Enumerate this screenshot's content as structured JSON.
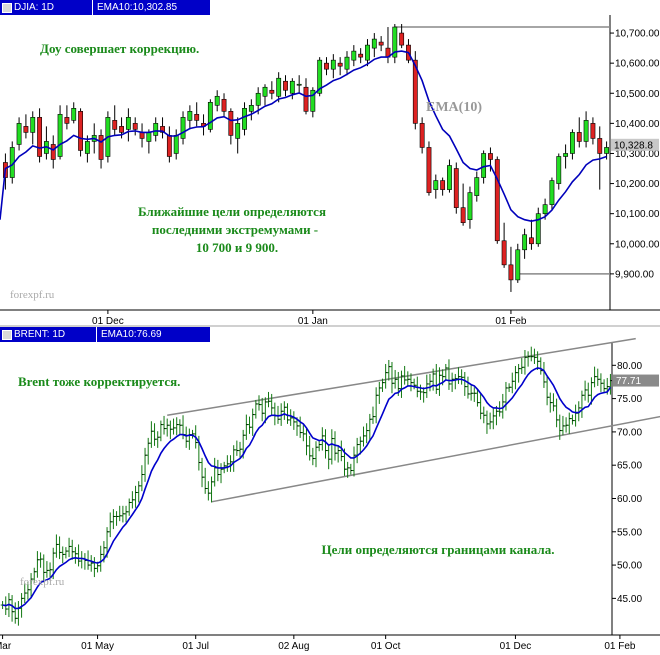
{
  "chart_data": [
    {
      "type": "candlestick",
      "symbol_label": "DJIA: 1D",
      "ema_label": "EMA10:10,302.85",
      "ylim": [
        9780,
        10760
      ],
      "y_ticks": [
        "10,700.00",
        "10,600.00",
        "10,500.00",
        "10,400.00",
        "10,300.00",
        "10,200.00",
        "10,100.00",
        "10,000.00",
        "9,900.00"
      ],
      "y_tick_values": [
        10700,
        10600,
        10500,
        10400,
        10300,
        10200,
        10100,
        10000,
        9900
      ],
      "last_value_label": "10,328.8",
      "last_value": 10328.8,
      "x_ticks": [
        "01 Dec",
        "01 Jan",
        "01 Feb"
      ],
      "x_tick_index": [
        15,
        45,
        74
      ],
      "annotations": {
        "headline": "Доу совершает коррекцию.",
        "ema_name": "EMA(10)",
        "targets_line1": "Ближайшие цели определяются",
        "targets_line2": "последними экстремумами -",
        "targets_line3": "10 700 и 9 900.",
        "watermark": "forexpf.ru"
      },
      "levels": [
        10720,
        9900
      ],
      "ohlc": [
        [
          10270,
          10300,
          10180,
          10220
        ],
        [
          10220,
          10340,
          10200,
          10320
        ],
        [
          10330,
          10420,
          10310,
          10400
        ],
        [
          10390,
          10430,
          10350,
          10370
        ],
        [
          10370,
          10440,
          10330,
          10420
        ],
        [
          10420,
          10450,
          10270,
          10290
        ],
        [
          10300,
          10390,
          10280,
          10340
        ],
        [
          10330,
          10360,
          10250,
          10280
        ],
        [
          10290,
          10460,
          10280,
          10430
        ],
        [
          10420,
          10460,
          10380,
          10400
        ],
        [
          10410,
          10470,
          10400,
          10450
        ],
        [
          10440,
          10450,
          10290,
          10310
        ],
        [
          10300,
          10360,
          10270,
          10340
        ],
        [
          10340,
          10400,
          10300,
          10360
        ],
        [
          10360,
          10380,
          10250,
          10280
        ],
        [
          10290,
          10440,
          10270,
          10420
        ],
        [
          10410,
          10460,
          10360,
          10380
        ],
        [
          10390,
          10420,
          10350,
          10370
        ],
        [
          10380,
          10450,
          10340,
          10420
        ],
        [
          10400,
          10420,
          10360,
          10380
        ],
        [
          10370,
          10400,
          10320,
          10350
        ],
        [
          10340,
          10380,
          10300,
          10370
        ],
        [
          10360,
          10420,
          10340,
          10400
        ],
        [
          10390,
          10420,
          10350,
          10370
        ],
        [
          10360,
          10390,
          10270,
          10290
        ],
        [
          10300,
          10380,
          10280,
          10360
        ],
        [
          10350,
          10440,
          10330,
          10420
        ],
        [
          10410,
          10460,
          10380,
          10440
        ],
        [
          10430,
          10470,
          10390,
          10410
        ],
        [
          10400,
          10430,
          10360,
          10390
        ],
        [
          10380,
          10480,
          10370,
          10470
        ],
        [
          10460,
          10510,
          10440,
          10490
        ],
        [
          10480,
          10500,
          10420,
          10440
        ],
        [
          10440,
          10450,
          10330,
          10360
        ],
        [
          10350,
          10420,
          10300,
          10400
        ],
        [
          10380,
          10470,
          10360,
          10450
        ],
        [
          10440,
          10480,
          10410,
          10460
        ],
        [
          10460,
          10520,
          10430,
          10500
        ],
        [
          10490,
          10530,
          10460,
          10520
        ],
        [
          10510,
          10540,
          10480,
          10500
        ],
        [
          10490,
          10570,
          10470,
          10550
        ],
        [
          10540,
          10560,
          10490,
          10510
        ],
        [
          10500,
          10550,
          10480,
          10540
        ],
        [
          10530,
          10560,
          10500,
          10530
        ],
        [
          10520,
          10550,
          10430,
          10440
        ],
        [
          10440,
          10520,
          10420,
          10510
        ],
        [
          10500,
          10620,
          10490,
          10610
        ],
        [
          10600,
          10620,
          10560,
          10580
        ],
        [
          10580,
          10630,
          10550,
          10610
        ],
        [
          10600,
          10620,
          10560,
          10590
        ],
        [
          10580,
          10640,
          10560,
          10620
        ],
        [
          10610,
          10660,
          10590,
          10640
        ],
        [
          10630,
          10650,
          10600,
          10620
        ],
        [
          10610,
          10680,
          10590,
          10660
        ],
        [
          10650,
          10700,
          10620,
          10680
        ],
        [
          10670,
          10690,
          10640,
          10660
        ],
        [
          10650,
          10720,
          10600,
          10620
        ],
        [
          10620,
          10730,
          10600,
          10720
        ],
        [
          10700,
          10730,
          10650,
          10660
        ],
        [
          10660,
          10680,
          10600,
          10610
        ],
        [
          10610,
          10640,
          10380,
          10400
        ],
        [
          10400,
          10420,
          10300,
          10320
        ],
        [
          10320,
          10340,
          10160,
          10170
        ],
        [
          10180,
          10230,
          10150,
          10210
        ],
        [
          10210,
          10220,
          10160,
          10180
        ],
        [
          10180,
          10280,
          10170,
          10260
        ],
        [
          10250,
          10270,
          10100,
          10120
        ],
        [
          10120,
          10200,
          10060,
          10070
        ],
        [
          10080,
          10190,
          10050,
          10170
        ],
        [
          10160,
          10240,
          10140,
          10220
        ],
        [
          10220,
          10310,
          10200,
          10300
        ],
        [
          10300,
          10320,
          10240,
          10280
        ],
        [
          10280,
          10290,
          10000,
          10010
        ],
        [
          10010,
          10070,
          9920,
          9930
        ],
        [
          9930,
          9990,
          9840,
          9880
        ],
        [
          9880,
          10000,
          9870,
          9980
        ],
        [
          9980,
          10050,
          9950,
          10030
        ],
        [
          10020,
          10080,
          9980,
          10000
        ],
        [
          10000,
          10120,
          9990,
          10100
        ],
        [
          10100,
          10150,
          10080,
          10130
        ],
        [
          10130,
          10220,
          10110,
          10210
        ],
        [
          10200,
          10300,
          10180,
          10290
        ],
        [
          10290,
          10330,
          10250,
          10300
        ],
        [
          10300,
          10380,
          10280,
          10370
        ],
        [
          10370,
          10420,
          10320,
          10340
        ],
        [
          10340,
          10440,
          10320,
          10410
        ],
        [
          10400,
          10420,
          10330,
          10350
        ],
        [
          10350,
          10390,
          10180,
          10300
        ],
        [
          10300,
          10340,
          10280,
          10320
        ]
      ],
      "ema": [
        10250,
        10262,
        10290,
        10305,
        10325,
        10318,
        10322,
        10312,
        10330,
        10342,
        10360,
        10350,
        10347,
        10350,
        10338,
        10355,
        10360,
        10362,
        10373,
        10375,
        10370,
        10370,
        10375,
        10374,
        10358,
        10358,
        10370,
        10383,
        10388,
        10389,
        10403,
        10418,
        10422,
        10410,
        10412,
        10422,
        10430,
        10443,
        10457,
        10465,
        10481,
        10486,
        10495,
        10501,
        10490,
        10493,
        10515,
        10527,
        10542,
        10550,
        10563,
        10577,
        10585,
        10597,
        10613,
        10620,
        10620,
        10637,
        10640,
        10635,
        10592,
        10542,
        10474,
        10425,
        10380,
        10358,
        10315,
        10270,
        10250,
        10245,
        10256,
        10260,
        10215,
        10165,
        10113,
        10090,
        10080,
        10075,
        10080,
        10090,
        10112,
        10145,
        10173,
        10206,
        10230,
        10262,
        10278,
        10282,
        10290
      ]
    },
    {
      "type": "ohlc",
      "symbol_label": "BRENT: 1D",
      "ema_label": "EMA10:76.69",
      "ylim": [
        39.5,
        83.5
      ],
      "y_ticks": [
        "80.00",
        "75.00",
        "70.00",
        "65.00",
        "60.00",
        "55.00",
        "50.00",
        "45.00"
      ],
      "y_tick_values": [
        80,
        75,
        70,
        65,
        60,
        55,
        50,
        45
      ],
      "last_value_label": "77.71",
      "last_value": 77.71,
      "x_ticks": [
        "Mar",
        "01 May",
        "01 Jul",
        "02 Aug",
        "01 Oct",
        "01 Dec",
        "01 Feb"
      ],
      "x_tick_index": [
        0,
        30,
        61,
        92,
        121,
        162,
        195
      ],
      "annotations": {
        "headline": "Brent тоже корректируется.",
        "channel_note": "Цели определяются границами канала.",
        "watermark": "forexpf.ru"
      },
      "channel": {
        "upper": [
          [
            52,
            72.5
          ],
          [
            200,
            84
          ]
        ],
        "lower": [
          [
            66,
            59.5
          ],
          [
            210,
            72.5
          ]
        ]
      },
      "close": [
        44.0,
        43.4,
        44.8,
        43.0,
        42.0,
        43.5,
        45.0,
        45.8,
        46.3,
        47.9,
        49.0,
        50.8,
        50.9,
        48.9,
        49.2,
        49.3,
        51.8,
        53.1,
        51.9,
        51.6,
        52.1,
        52.8,
        52.0,
        51.7,
        50.6,
        51.0,
        50.7,
        50.0,
        50.3,
        49.5,
        49.9,
        51.6,
        52.6,
        55.0,
        56.5,
        57.3,
        57.3,
        57.4,
        57.7,
        58.0,
        59.4,
        59.8,
        60.9,
        61.9,
        63.6,
        66.5,
        68.3,
        70.1,
        68.9,
        69.2,
        71.1,
        70.5,
        71.0,
        70.4,
        70.6,
        71.1,
        71.0,
        69.6,
        68.6,
        69.6,
        69.7,
        68.4,
        65.4,
        63.2,
        61.5,
        60.8,
        62.5,
        64.6,
        63.6,
        64.4,
        64.9,
        65.2,
        65.5,
        67.3,
        67.2,
        67.4,
        69.5,
        71.1,
        70.7,
        72.6,
        74.2,
        74.1,
        72.8,
        74.5,
        74.6,
        73.6,
        72.4,
        71.9,
        73.1,
        73.7,
        71.8,
        72.1,
        71.5,
        70.9,
        69.9,
        69.7,
        67.9,
        66.4,
        66.0,
        67.7,
        68.1,
        69.4,
        67.2,
        65.9,
        69.0,
        66.8,
        67.2,
        66.3,
        64.4,
        64.6,
        64.2,
        66.5,
        68.1,
        68.6,
        69.4,
        70.2,
        71.9,
        72.3,
        75.5,
        76.6,
        77.4,
        78.9,
        79.8,
        77.3,
        77.9,
        76.5,
        78.4,
        77.8,
        77.9,
        77.4,
        77.0,
        76.1,
        76.0,
        75.9,
        77.2,
        77.6,
        78.7,
        76.4,
        78.5,
        78.3,
        79.6,
        77.2,
        77.9,
        78.0,
        78.3,
        78.2,
        76.8,
        75.7,
        75.8,
        75.8,
        74.4,
        72.8,
        72.5,
        71.2,
        71.5,
        72.4,
        73.1,
        73.0,
        74.5,
        76.6,
        76.7,
        77.6,
        78.9,
        79.5,
        79.7,
        81.2,
        81.3,
        81.3,
        81.2,
        80.6,
        79.2,
        77.5,
        75.2,
        74.4,
        73.9,
        71.8,
        70.2,
        70.9,
        71.0,
        72.0,
        71.7,
        72.8,
        73.6,
        75.5,
        76.3,
        75.5,
        77.4,
        78.3,
        77.9,
        77.3,
        76.5,
        76.8,
        77.7
      ],
      "ema": [
        44.0,
        43.9,
        44.1,
        43.9,
        43.5,
        43.5,
        43.8,
        44.1,
        44.6,
        45.1,
        45.9,
        46.7,
        47.4,
        47.6,
        47.8,
        48.0,
        48.6,
        49.3,
        49.8,
        50.1,
        50.4,
        50.8,
        51.0,
        51.1,
        51.0,
        51.0,
        50.9,
        50.7,
        50.6,
        50.4,
        50.3,
        50.5,
        50.9,
        51.7,
        52.6,
        53.6,
        54.3,
        55.0,
        55.7,
        56.2,
        56.9,
        57.6,
        58.3,
        59.0,
        60.0,
        61.4,
        62.7,
        64.1,
        65.0,
        65.8,
        66.8,
        67.5,
        68.1,
        68.6,
        68.9,
        69.3,
        69.6,
        69.6,
        69.4,
        69.5,
        69.5,
        69.2,
        68.5,
        67.5,
        66.4,
        65.4,
        64.9,
        64.8,
        64.6,
        64.6,
        64.6,
        64.7,
        64.9,
        65.4,
        65.7,
        66.0,
        66.6,
        67.5,
        68.0,
        68.9,
        69.9,
        70.6,
        71.0,
        71.7,
        72.3,
        72.5,
        72.5,
        72.4,
        72.5,
        72.7,
        72.5,
        72.4,
        72.2,
        71.9,
        71.5,
        71.2,
        70.6,
        69.8,
        69.1,
        68.9,
        68.7,
        68.8,
        68.5,
        68.0,
        68.2,
        68.0,
        67.9,
        67.6,
        66.9,
        66.5,
        66.1,
        66.1,
        66.4,
        66.8,
        67.3,
        67.9,
        68.7,
        69.4,
        70.5,
        71.6,
        72.7,
        73.8,
        74.9,
        75.3,
        75.8,
        75.9,
        76.4,
        76.6,
        76.9,
        76.9,
        76.8,
        76.7,
        76.6,
        76.5,
        76.6,
        76.7,
        77.0,
        76.9,
        77.2,
        77.4,
        77.8,
        77.7,
        77.7,
        77.8,
        77.9,
        77.9,
        77.7,
        77.4,
        77.1,
        76.9,
        76.4,
        75.8,
        75.2,
        74.4,
        73.9,
        73.6,
        73.6,
        73.5,
        73.6,
        74.1,
        74.6,
        75.1,
        75.8,
        76.5,
        77.1,
        77.9,
        78.6,
        79.1,
        79.4,
        79.6,
        79.5,
        79.2,
        78.4,
        77.7,
        77.0,
        76.0,
        75.0,
        74.3,
        73.7,
        73.4,
        73.0,
        72.9,
        72.9,
        73.3,
        73.7,
        73.8,
        74.5,
        75.2,
        75.6,
        75.8,
        75.9,
        76.0,
        76.7
      ]
    }
  ]
}
